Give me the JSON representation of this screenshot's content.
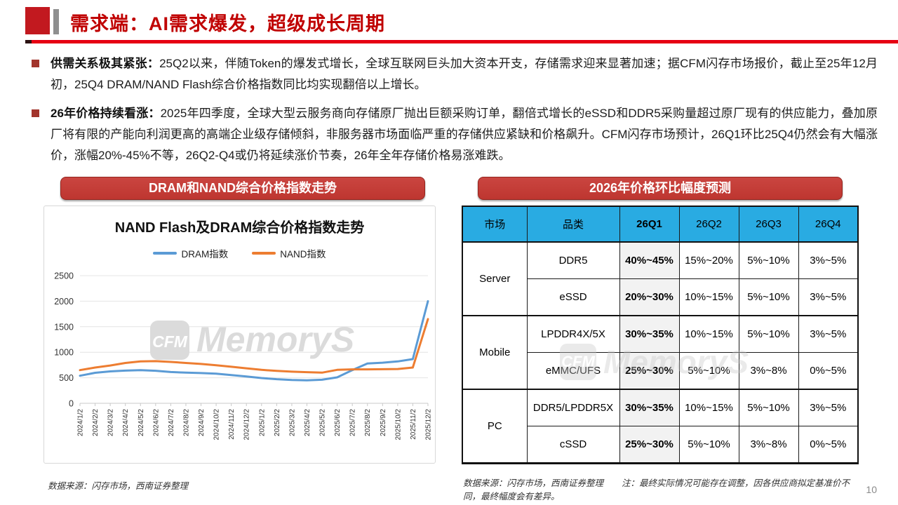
{
  "header": {
    "title": "需求端：AI需求爆发，超级成长周期"
  },
  "bullets": [
    {
      "lead": "供需关系极其紧张：",
      "text": "25Q2以来，伴随Token的爆发式增长，全球互联网巨头加大资本开支，存储需求迎来显著加速；据CFM闪存市场报价，截止至25年12月初，25Q4 DRAM/NAND Flash综合价格指数同比均实现翻倍以上增长。"
    },
    {
      "lead": "26年价格持续看涨：",
      "text": "2025年四季度，全球大型云服务商向存储原厂抛出巨额采购订单，翻倍式增长的eSSD和DDR5采购量超过原厂现有的供应能力，叠加原厂将有限的产能向利润更高的高端企业级存储倾斜，非服务器市场面临严重的存储供应紧缺和价格飙升。CFM闪存市场预计，26Q1环比25Q4仍然会有大幅涨价，涨幅20%-45%不等，26Q2-Q4或仍将延续涨价节奏，26年全年存储价格易涨难跌。"
    }
  ],
  "left_panel": {
    "banner": "DRAM和NAND综合价格指数走势",
    "source": "数据来源：闪存市场，西南证券整理"
  },
  "right_panel": {
    "banner": "2026年价格环比幅度预测",
    "source": "数据来源：闪存市场，西南证券整理",
    "note": "注：最终实际情况可能存在调整，因各供应商拟定基准价不同，最终幅度会有差异。"
  },
  "chart_data": {
    "type": "line",
    "title": "NAND Flash及DRAM综合价格指数走势",
    "xlabel": "",
    "ylabel": "",
    "ylim": [
      0,
      2500
    ],
    "yticks": [
      0,
      500,
      1000,
      1500,
      2000,
      2500
    ],
    "grid": true,
    "legend_position": "top",
    "categories": [
      "2024/1/2",
      "2024/2/2",
      "2024/3/2",
      "2024/4/2",
      "2024/5/2",
      "2024/6/2",
      "2024/7/2",
      "2024/8/2",
      "2024/9/2",
      "2024/10/2",
      "2024/11/2",
      "2024/12/2",
      "2025/1/2",
      "2025/2/2",
      "2025/3/2",
      "2025/4/2",
      "2025/5/2",
      "2025/6/2",
      "2025/7/2",
      "2025/8/2",
      "2025/9/2",
      "2025/10/2",
      "2025/11/2",
      "2025/12/2"
    ],
    "series": [
      {
        "name": "DRAM指数",
        "color": "#5B9BD5",
        "values": [
          540,
          598,
          625,
          640,
          648,
          638,
          612,
          600,
          592,
          580,
          552,
          525,
          495,
          472,
          458,
          450,
          462,
          508,
          650,
          780,
          795,
          820,
          865,
          2000
        ]
      },
      {
        "name": "NAND指数",
        "color": "#ED7D31",
        "values": [
          650,
          700,
          740,
          790,
          820,
          825,
          810,
          790,
          770,
          745,
          715,
          685,
          655,
          635,
          620,
          610,
          600,
          655,
          665,
          665,
          668,
          672,
          700,
          1650
        ]
      }
    ]
  },
  "table": {
    "headers": [
      "市场",
      "品类",
      "26Q1",
      "26Q2",
      "26Q3",
      "26Q4"
    ],
    "groups": [
      {
        "market": "Server",
        "rows": [
          {
            "category": "DDR5",
            "values": [
              "40%~45%",
              "15%~20%",
              "5%~10%",
              "3%~5%"
            ]
          },
          {
            "category": "eSSD",
            "values": [
              "20%~30%",
              "10%~15%",
              "5%~10%",
              "3%~5%"
            ]
          }
        ]
      },
      {
        "market": "Mobile",
        "rows": [
          {
            "category": "LPDDR4X/5X",
            "values": [
              "30%~35%",
              "10%~15%",
              "5%~10%",
              "3%~5%"
            ]
          },
          {
            "category": "eMMC/UFS",
            "values": [
              "25%~30%",
              "5%~10%",
              "3%~8%",
              "0%~5%"
            ]
          }
        ]
      },
      {
        "market": "PC",
        "rows": [
          {
            "category": "DDR5/LPDDR5X",
            "values": [
              "30%~35%",
              "10%~15%",
              "5%~10%",
              "3%~5%"
            ]
          },
          {
            "category": "cSSD",
            "values": [
              "25%~30%",
              "5%~10%",
              "3%~8%",
              "0%~5%"
            ]
          }
        ]
      }
    ]
  },
  "watermark": {
    "box_text": "CFM",
    "brand_text": "MemoryS"
  },
  "page_number": "10",
  "colors": {
    "title_red": "#C00000",
    "rule_red": "#E60012",
    "banner_red": "#BE3630",
    "table_header_blue": "#29ABE2",
    "dram_blue": "#5B9BD5",
    "nand_orange": "#ED7D31",
    "q1_column_bg": "#F2F2F2",
    "watermark_gray": "#DBDBDB"
  }
}
